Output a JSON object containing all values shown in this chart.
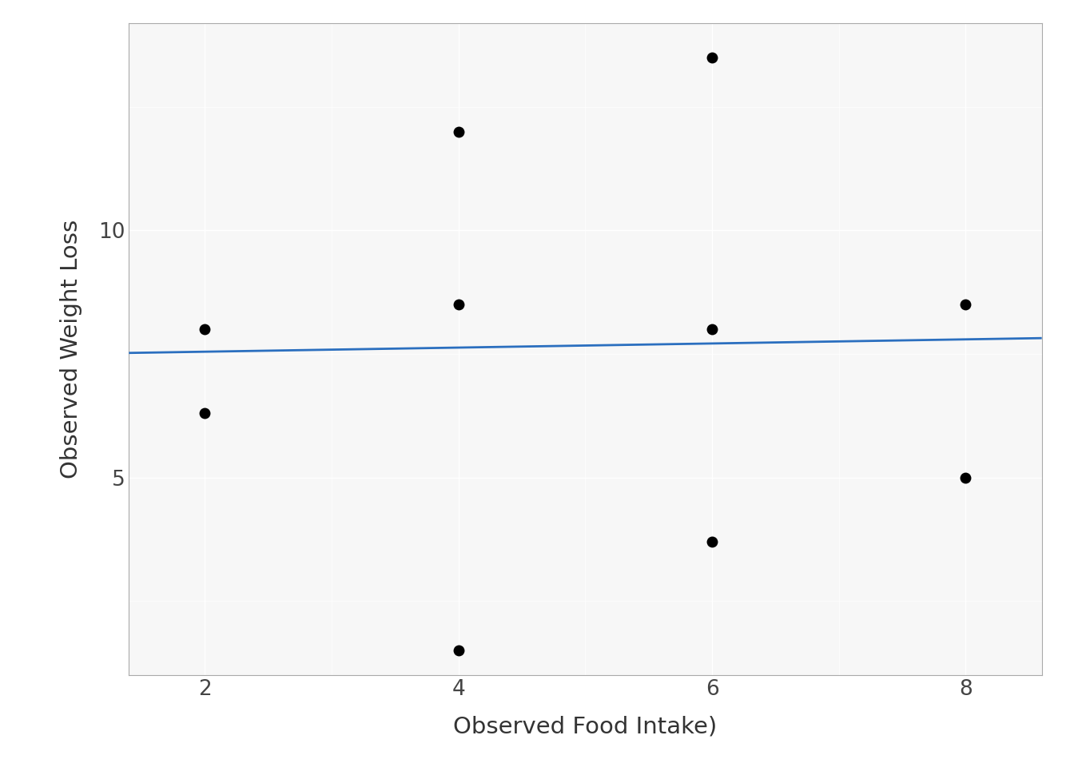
{
  "x": [
    2,
    2,
    4,
    4,
    4,
    6,
    6,
    6,
    8,
    8
  ],
  "y": [
    8.0,
    6.3,
    12.0,
    8.5,
    1.5,
    13.5,
    8.0,
    3.7,
    8.5,
    5.0
  ],
  "xlim": [
    1.4,
    8.6
  ],
  "ylim": [
    1.0,
    14.2
  ],
  "xticks": [
    2,
    4,
    6,
    8
  ],
  "yticks": [
    5,
    10
  ],
  "xlabel": "Observed Food Intake)",
  "ylabel": "Observed Weight Loss",
  "line_color": "#2B6FBF",
  "line_width": 2.0,
  "dot_color": "#000000",
  "dot_size": 100,
  "background_color": "#FFFFFF",
  "panel_background": "#F7F7F7",
  "grid_major_color": "#FFFFFF",
  "grid_minor_color": "#FFFFFF",
  "axis_color": "#333333",
  "tick_label_color": "#444444",
  "axis_label_color": "#333333",
  "regression_x0": 1.4,
  "regression_x1": 8.6,
  "regression_y0": 7.52,
  "regression_y1": 7.82
}
